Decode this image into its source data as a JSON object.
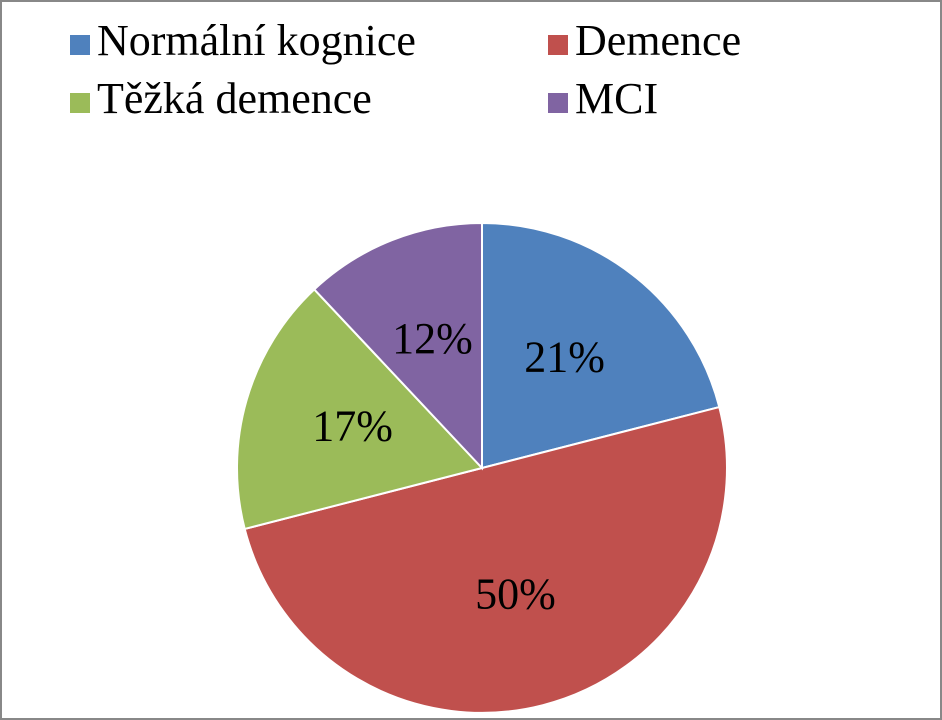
{
  "chart_data": {
    "type": "pie",
    "categories": [
      "Normální kognice",
      "Demence",
      "Těžká demence",
      "MCI"
    ],
    "values": [
      21,
      50,
      17,
      12
    ],
    "value_labels": [
      "21%",
      "50%",
      "17%",
      "12%"
    ],
    "colors": [
      "#4f81bd",
      "#c0504d",
      "#9bbb59",
      "#8064a2"
    ],
    "legend": "top"
  }
}
